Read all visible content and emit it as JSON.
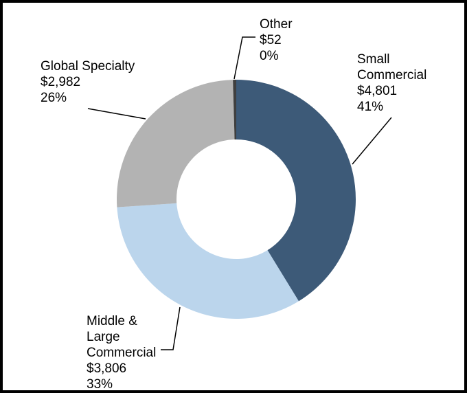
{
  "chart_data": {
    "type": "pie",
    "subtype": "donut",
    "title": "",
    "categories": [
      "Small Commercial",
      "Middle & Large Commercial",
      "Global Specialty",
      "Other"
    ],
    "values": [
      4801,
      3806,
      2982,
      52
    ],
    "value_labels": [
      "$4,801",
      "$3,806",
      "$2,982",
      "$52"
    ],
    "percent_labels": [
      "41%",
      "33%",
      "26%",
      "0%"
    ],
    "colors": [
      "#3D5A78",
      "#BBD5EC",
      "#B3B3B3",
      "#3F3F3F"
    ],
    "start_angle_deg": 0,
    "direction": "clockwise",
    "inner_radius_ratio": 0.5,
    "legend_position": "none",
    "label_style": "leader-line callouts"
  },
  "labels": {
    "other": {
      "lines": [
        "Other",
        "$52",
        "0%"
      ]
    },
    "small_commercial": {
      "lines": [
        "Small",
        "Commercial",
        "$4,801",
        "41%"
      ]
    },
    "global_specialty": {
      "lines": [
        "Global Specialty",
        "$2,982",
        "26%"
      ]
    },
    "middle_large_commercial": {
      "lines": [
        "Middle &",
        "Large",
        "Commercial",
        "$3,806",
        "33%"
      ]
    }
  }
}
